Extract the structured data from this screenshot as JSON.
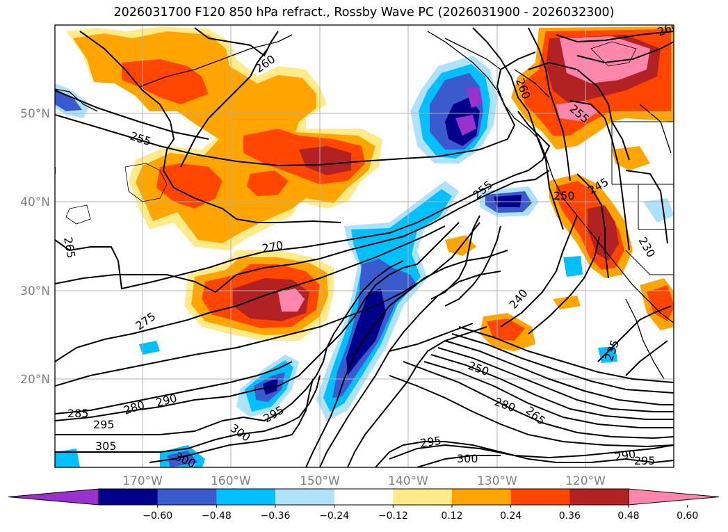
{
  "title": "2026031700 F120 850 hPa refract., Rossby Wave PC (2026031900 - 2026032300)",
  "lat_labels": [
    "50°N",
    "40°N",
    "30°N",
    "20°N"
  ],
  "lon_labels": [
    "170°W",
    "160°W",
    "150°W",
    "140°W",
    "130°W",
    "120°W"
  ],
  "contour_labels": [
    "260",
    "255",
    "265",
    "270",
    "275",
    "280",
    "290",
    "285",
    "295",
    "305",
    "300",
    "295",
    "300",
    "255",
    "240",
    "250",
    "280",
    "265",
    "235",
    "295",
    "300",
    "290",
    "295",
    "260",
    "255",
    "250",
    "245",
    "230",
    "260"
  ],
  "colorbar": {
    "ticks": [
      "−0.60",
      "−0.48",
      "−0.36",
      "−0.24",
      "−0.12",
      "0.12",
      "0.24",
      "0.36",
      "0.48",
      "0.60"
    ],
    "colors": [
      "#9932cc",
      "#00008b",
      "#3a5bcf",
      "#00bfff",
      "#aee2fb",
      "#ffffff",
      "#ffeb8a",
      "#ffa500",
      "#ff4500",
      "#b22222",
      "#ff85ad"
    ]
  }
}
